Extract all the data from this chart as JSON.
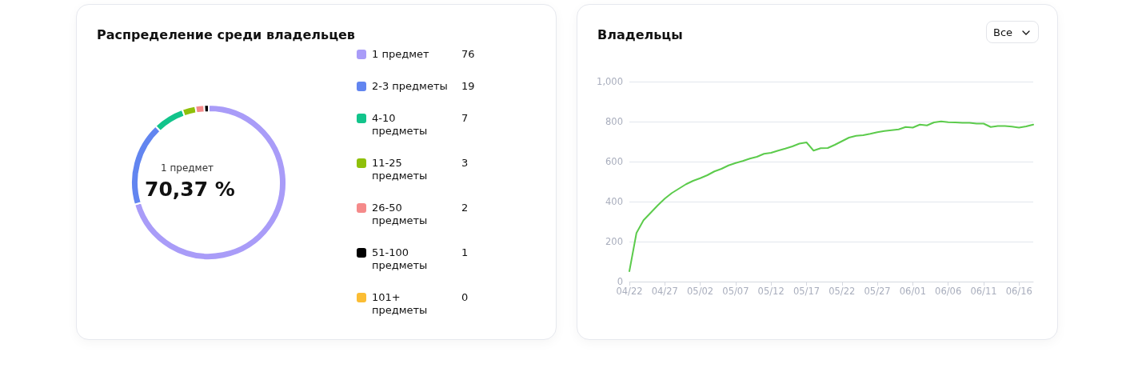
{
  "chart_data": [
    {
      "type": "donut",
      "title": "Распределение среди владельцев",
      "categories": [
        "1 предмет",
        "2-3 предметы",
        "4-10 предметы",
        "11-25 предметы",
        "26-50 предметы",
        "51-100 предметы",
        "101+ предметы"
      ],
      "values": [
        76,
        19,
        7,
        3,
        2,
        1,
        0
      ],
      "colors": [
        "#a99cf8",
        "#6285f0",
        "#12c48b",
        "#8fc00a",
        "#f58a8a",
        "#000000",
        "#fbbd34"
      ],
      "legend": "right",
      "value_labels": [
        "76",
        "19",
        "7",
        "3",
        "2",
        "1",
        "0"
      ],
      "annotations": [
        "1 предмет",
        "70,37 %"
      ]
    },
    {
      "type": "line",
      "title": "Владельцы",
      "categories": [
        "04/22",
        null,
        null,
        null,
        null,
        "04/27",
        null,
        null,
        null,
        null,
        "05/02",
        null,
        null,
        null,
        null,
        "05/07",
        null,
        null,
        null,
        null,
        "05/12",
        null,
        null,
        null,
        null,
        "05/17",
        null,
        null,
        null,
        null,
        "05/22",
        null,
        null,
        null,
        null,
        "05/27",
        null,
        null,
        null,
        null,
        "06/01",
        null,
        null,
        null,
        null,
        "06/06",
        null,
        null,
        null,
        null,
        "06/11",
        null,
        null,
        null,
        null,
        "06/16",
        null,
        null
      ],
      "series": [
        {
          "color": "#5ccb4c",
          "values": [
            52,
            243,
            307,
            344,
            381,
            415,
            443,
            465,
            487,
            504,
            517,
            532,
            551,
            564,
            581,
            593,
            603,
            615,
            624,
            639,
            644,
            655,
            665,
            676,
            690,
            696,
            655,
            667,
            668,
            684,
            702,
            720,
            729,
            732,
            739,
            747,
            753,
            757,
            761,
            773,
            770,
            785,
            781,
            796,
            801,
            797,
            796,
            794,
            794,
            790,
            790,
            773,
            778,
            778,
            775,
            770,
            776,
            785
          ]
        }
      ],
      "ylim": [
        0,
        1000
      ],
      "yticks": [
        0,
        200,
        400,
        600,
        800,
        {
          "value": 1000,
          "label": "1,000"
        }
      ],
      "grid": "y",
      "marker": "none",
      "line_style": "solid",
      "annotations": [
        "Все"
      ]
    }
  ]
}
